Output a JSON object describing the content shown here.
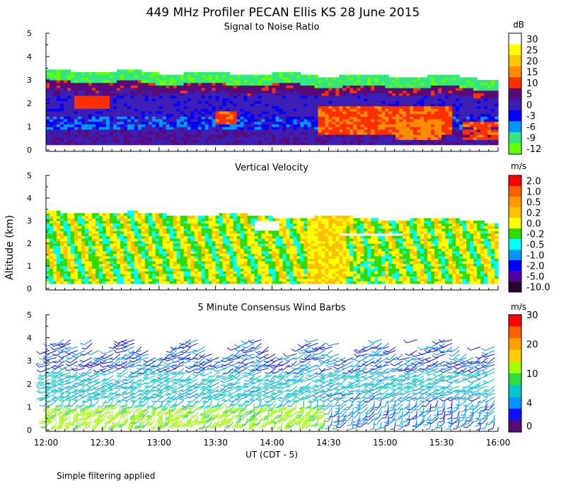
{
  "title": "449 MHz Profiler PECAN Ellis KS 28 June 2015",
  "footer": "Simple filtering applied",
  "chart_data": {
    "type": "heatmap",
    "ylabel": "Altitude (km)",
    "xlabel": "UT  (CDT - 5)",
    "x_ticks": [
      "12:00",
      "12:30",
      "13:00",
      "13:30",
      "14:00",
      "14:30",
      "15:00",
      "15:30",
      "16:00"
    ],
    "x_range_hours": [
      12,
      16
    ],
    "y_ticks": [
      "0",
      "1",
      "2",
      "3",
      "4",
      "5"
    ],
    "ylim": [
      0,
      5
    ],
    "panels": [
      {
        "id": "snr",
        "title": "Signal to Noise Ratio",
        "type": "heatmap",
        "units": "dB",
        "colorbar_labels": [
          "30",
          "25",
          "20",
          "15",
          "10",
          "5",
          "0",
          "-3",
          "-6",
          "-9",
          "-12"
        ],
        "colorbar_colors": [
          "#ffffff",
          "#ffff00",
          "#ffc800",
          "#ff8c00",
          "#ff3000",
          "#5a0a78",
          "#3c1eb4",
          "#0000ff",
          "#0096ff",
          "#32e680",
          "#64ff00"
        ],
        "value_range": [
          -12,
          30
        ]
      },
      {
        "id": "vertical-velocity",
        "title": "Vertical Velocity",
        "type": "heatmap",
        "units": "m/s",
        "colorbar_labels": [
          "2.0",
          "1.0",
          "0.5",
          "0.2",
          "0.0",
          "-0.2",
          "-0.5",
          "-1.0",
          "-2.0",
          "-5.0",
          "-10.0"
        ],
        "colorbar_colors": [
          "#ff0000",
          "#ff6000",
          "#ff9900",
          "#ffc000",
          "#ffff00",
          "#32dc00",
          "#00ffff",
          "#0096ff",
          "#0000ff",
          "#50009b",
          "#280032"
        ],
        "value_range": [
          -10,
          2
        ]
      },
      {
        "id": "wind-barbs",
        "title": "5 Minute Consensus Wind Barbs",
        "type": "barbs",
        "units": "m/s",
        "colorbar_labels": [
          "30",
          "20",
          "10",
          "4",
          "0"
        ],
        "colorbar_colors": [
          "#ff0000",
          "#ff6000",
          "#ffa000",
          "#ffd000",
          "#a0ff00",
          "#32dc3c",
          "#00c8c8",
          "#0096ff",
          "#1010ff",
          "#5a0a78"
        ],
        "value_range": [
          0,
          35
        ]
      }
    ]
  }
}
